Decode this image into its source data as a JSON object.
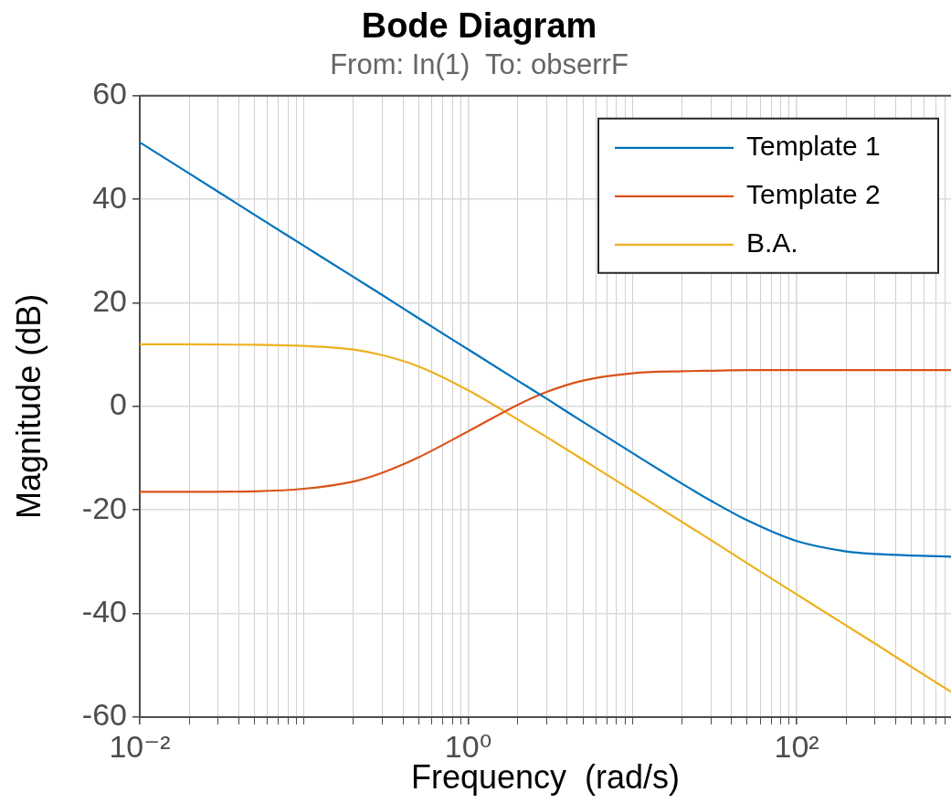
{
  "chart_data": {
    "type": "line",
    "title": "Bode Diagram",
    "subtitle": "From: In(1)  To: obserrF",
    "xlabel": "Frequency  (rad/s)",
    "ylabel": "Magnitude (dB)",
    "log": "x",
    "grid": true,
    "legend": "top right",
    "line_style": "solid",
    "x": [
      0.01,
      0.02,
      0.05,
      0.1,
      0.2,
      0.3,
      0.5,
      1,
      2,
      3,
      5,
      10,
      20,
      30,
      50,
      100,
      200,
      300,
      500,
      870
    ],
    "xlim": [
      0.01,
      870
    ],
    "xticks": [
      {
        "value": 0.01,
        "label": "10⁻²"
      },
      {
        "value": 0.02,
        "label": null
      },
      {
        "value": 0.03,
        "label": null
      },
      {
        "value": 0.04,
        "label": null
      },
      {
        "value": 0.05,
        "label": null
      },
      {
        "value": 0.06,
        "label": null
      },
      {
        "value": 0.07,
        "label": null
      },
      {
        "value": 0.08,
        "label": null
      },
      {
        "value": 0.09,
        "label": null
      },
      {
        "value": 0.1,
        "label": null
      },
      {
        "value": 0.2,
        "label": null
      },
      {
        "value": 0.3,
        "label": null
      },
      {
        "value": 0.4,
        "label": null
      },
      {
        "value": 0.5,
        "label": null
      },
      {
        "value": 0.6,
        "label": null
      },
      {
        "value": 0.7,
        "label": null
      },
      {
        "value": 0.8,
        "label": null
      },
      {
        "value": 0.9,
        "label": null
      },
      {
        "value": 1,
        "label": "10⁰"
      },
      {
        "value": 2,
        "label": null
      },
      {
        "value": 3,
        "label": null
      },
      {
        "value": 4,
        "label": null
      },
      {
        "value": 5,
        "label": null
      },
      {
        "value": 6,
        "label": null
      },
      {
        "value": 7,
        "label": null
      },
      {
        "value": 8,
        "label": null
      },
      {
        "value": 9,
        "label": null
      },
      {
        "value": 10,
        "label": null
      },
      {
        "value": 20,
        "label": null
      },
      {
        "value": 30,
        "label": null
      },
      {
        "value": 40,
        "label": null
      },
      {
        "value": 50,
        "label": null
      },
      {
        "value": 60,
        "label": null
      },
      {
        "value": 70,
        "label": null
      },
      {
        "value": 80,
        "label": null
      },
      {
        "value": 90,
        "label": null
      },
      {
        "value": 100,
        "label": "10²"
      },
      {
        "value": 200,
        "label": null
      },
      {
        "value": 300,
        "label": null
      },
      {
        "value": 400,
        "label": null
      },
      {
        "value": 500,
        "label": null
      },
      {
        "value": 600,
        "label": null
      },
      {
        "value": 700,
        "label": null
      },
      {
        "value": 800,
        "label": null
      }
    ],
    "ylim": [
      -60,
      60
    ],
    "yticks": [
      -60,
      -40,
      -20,
      0,
      20,
      40,
      60
    ],
    "series": [
      {
        "name": "Template 1",
        "color": "#0072bd",
        "values": [
          51,
          45,
          37,
          31,
          25,
          21.5,
          17,
          11,
          5,
          1.5,
          -3,
          -9,
          -14.9,
          -18.2,
          -22,
          -26,
          -28,
          -28.5,
          -28.8,
          -29
        ]
      },
      {
        "name": "Template 2",
        "color": "#d95319",
        "values": [
          -16.5,
          -16.5,
          -16.4,
          -15.9,
          -14.5,
          -12.8,
          -9.8,
          -4.8,
          0.3,
          2.8,
          5,
          6.4,
          6.8,
          6.9,
          7,
          7,
          7,
          7,
          7,
          7
        ]
      },
      {
        "name": "B.A.",
        "color": "#edb120",
        "values": [
          12,
          12,
          11.9,
          11.7,
          11,
          9.9,
          7.7,
          3.1,
          -2.5,
          -5.9,
          -10.3,
          -16.3,
          -22.3,
          -25.8,
          -30.3,
          -36.3,
          -42.3,
          -45.8,
          -50.3,
          -55.1
        ]
      }
    ]
  }
}
